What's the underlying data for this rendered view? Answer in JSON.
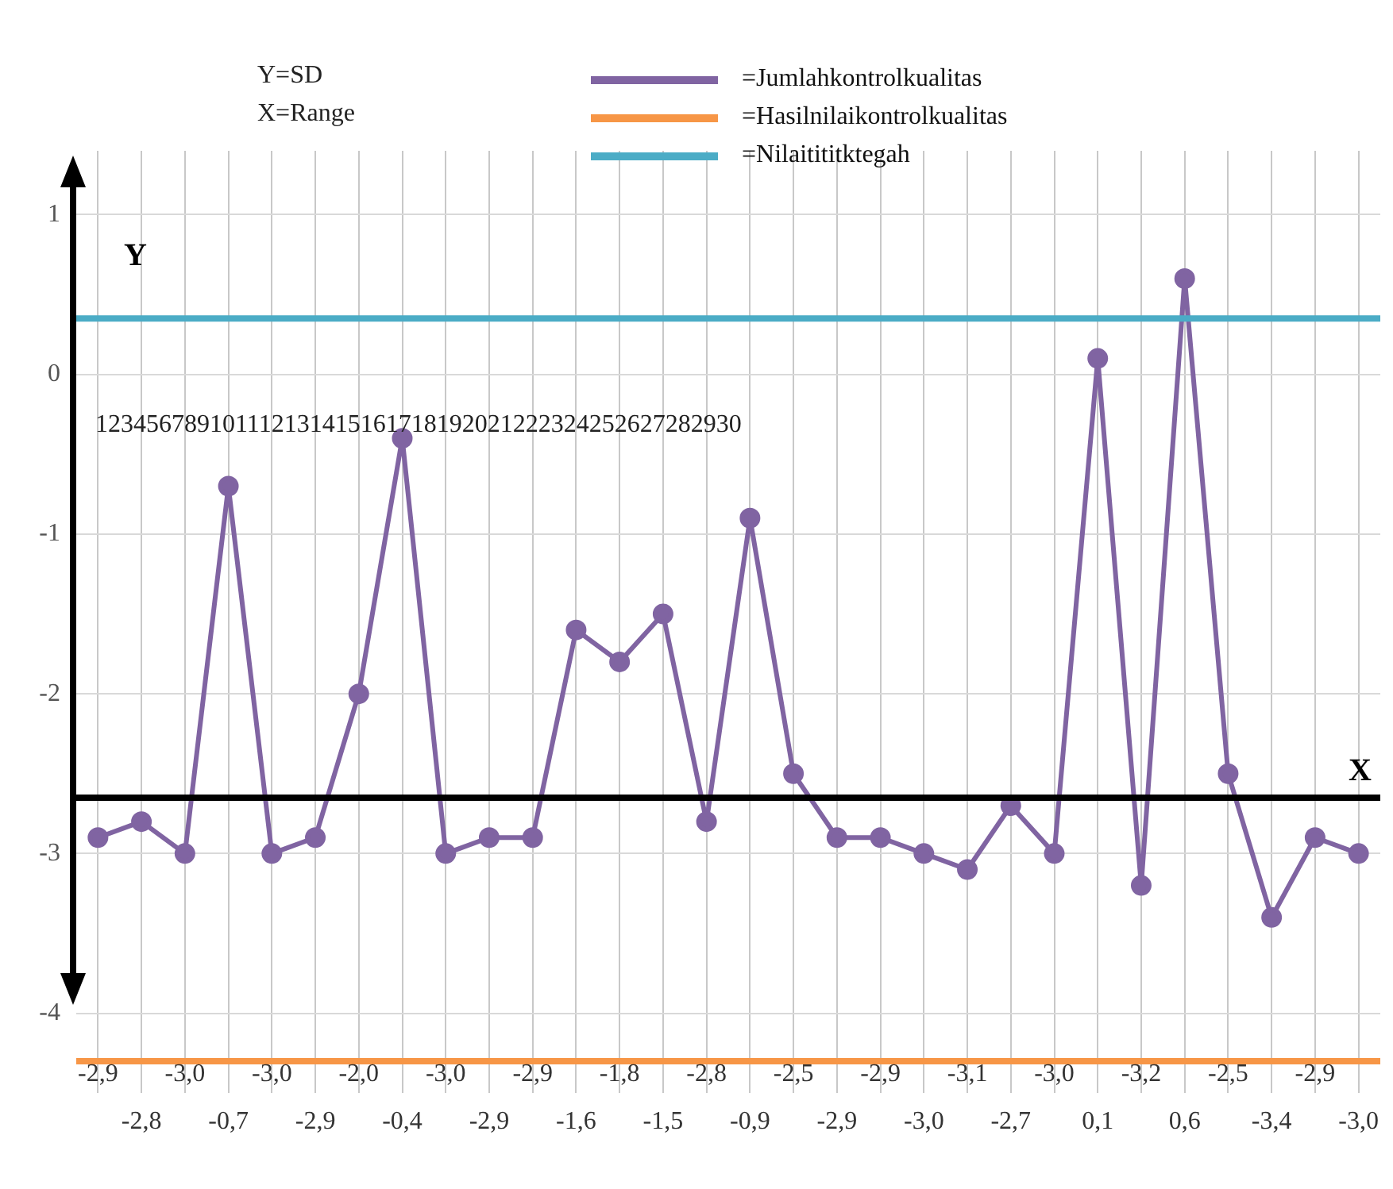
{
  "chart_data": {
    "type": "line",
    "ylabel": "Y",
    "categories": [
      null,
      null,
      null,
      null,
      null,
      null,
      null,
      null,
      null,
      null,
      null,
      null,
      null,
      null,
      null,
      null,
      null,
      null,
      null,
      null,
      null,
      null,
      null,
      null,
      null,
      null,
      null,
      null,
      null,
      null
    ],
    "series": [
      {
        "name": "=Jumlahkontrolkualitas",
        "color": "#8064a2",
        "values": [
          -2.9,
          -2.8,
          -3.0,
          -0.7,
          -3.0,
          -2.9,
          -2.0,
          -0.4,
          -3.0,
          -2.9,
          -2.9,
          -1.6,
          -1.8,
          -1.5,
          -2.8,
          -0.9,
          -2.5,
          -2.9,
          -2.9,
          -3.0,
          -3.1,
          -2.7,
          -3.0,
          0.1,
          -3.2,
          0.6,
          -2.5,
          -3.4,
          -2.9,
          -3.0
        ]
      }
    ],
    "value_labels": [
      "-2,9",
      "-2,8",
      "-3,0",
      "-0,7",
      "-3,0",
      "-2,9",
      "-2,0",
      "-0,4",
      "-3,0",
      "-2,9",
      "-2,9",
      "-1,6",
      "-1,8",
      "-1,5",
      "-2,8",
      "-0,9",
      "-2,5",
      "-2,9",
      "-2,9",
      "-3,0",
      "-3,1",
      "-2,7",
      "-3,0",
      "0,1",
      "-3,2",
      "0,6",
      "-2,5",
      "-3,4",
      "-2,9",
      "-3,0"
    ],
    "ylim": [
      -4.5,
      1.4
    ],
    "yticks": [
      -4,
      -3,
      -2,
      -1,
      0,
      1
    ],
    "grid": true,
    "marker": "circle",
    "line_style": "solid",
    "legend": "top",
    "ref_lines": [
      {
        "axis": "y",
        "value": -2.65,
        "label": "X",
        "color": "#000000"
      },
      {
        "axis": "y",
        "value": -4.3,
        "label": "=Hasilnilaikontrolkualitas",
        "color": "#f79646"
      },
      {
        "axis": "y",
        "value": 0.35,
        "label": "=Nilaitititktegah",
        "color": "#4bacc6"
      }
    ],
    "annotations": [
      "Y=SD",
      "X=Range",
      "123456789101112131415161718192021222324252627282930"
    ]
  }
}
